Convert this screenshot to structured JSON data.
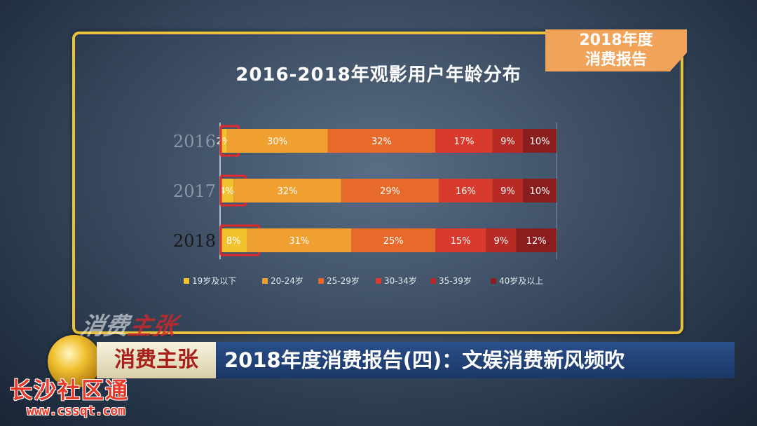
{
  "report_tag": {
    "line1": "2018年度",
    "line2": "消费报告"
  },
  "chart_data": {
    "type": "bar",
    "stacked": true,
    "orientation": "horizontal",
    "percent": true,
    "title": "2016-2018年观影用户年龄分布",
    "categories": [
      "2016",
      "2017",
      "2018"
    ],
    "series": [
      {
        "name": "19岁及以下",
        "color": "#f2c12e",
        "values": [
          2,
          4,
          8
        ]
      },
      {
        "name": "20-24岁",
        "color": "#f0a030",
        "values": [
          30,
          32,
          31
        ]
      },
      {
        "name": "25-29岁",
        "color": "#e86a2a",
        "values": [
          32,
          29,
          25
        ]
      },
      {
        "name": "30-34岁",
        "color": "#d83a2e",
        "values": [
          17,
          16,
          15
        ]
      },
      {
        "name": "35-39岁",
        "color": "#b82a24",
        "values": [
          9,
          9,
          9
        ]
      },
      {
        "name": "40岁及以上",
        "color": "#8a1e1e",
        "values": [
          10,
          10,
          12
        ]
      }
    ],
    "highlight_series": "19岁及以下",
    "legend_position": "bottom"
  },
  "program": {
    "name": "消费主张",
    "headline": "2018年度消费报告(四)：文娱消费新风频吹"
  },
  "watermark": {
    "logo_a": "消费",
    "logo_b": "主张",
    "site_name": "长沙社区通",
    "site_url": "www.cssqt.com"
  }
}
